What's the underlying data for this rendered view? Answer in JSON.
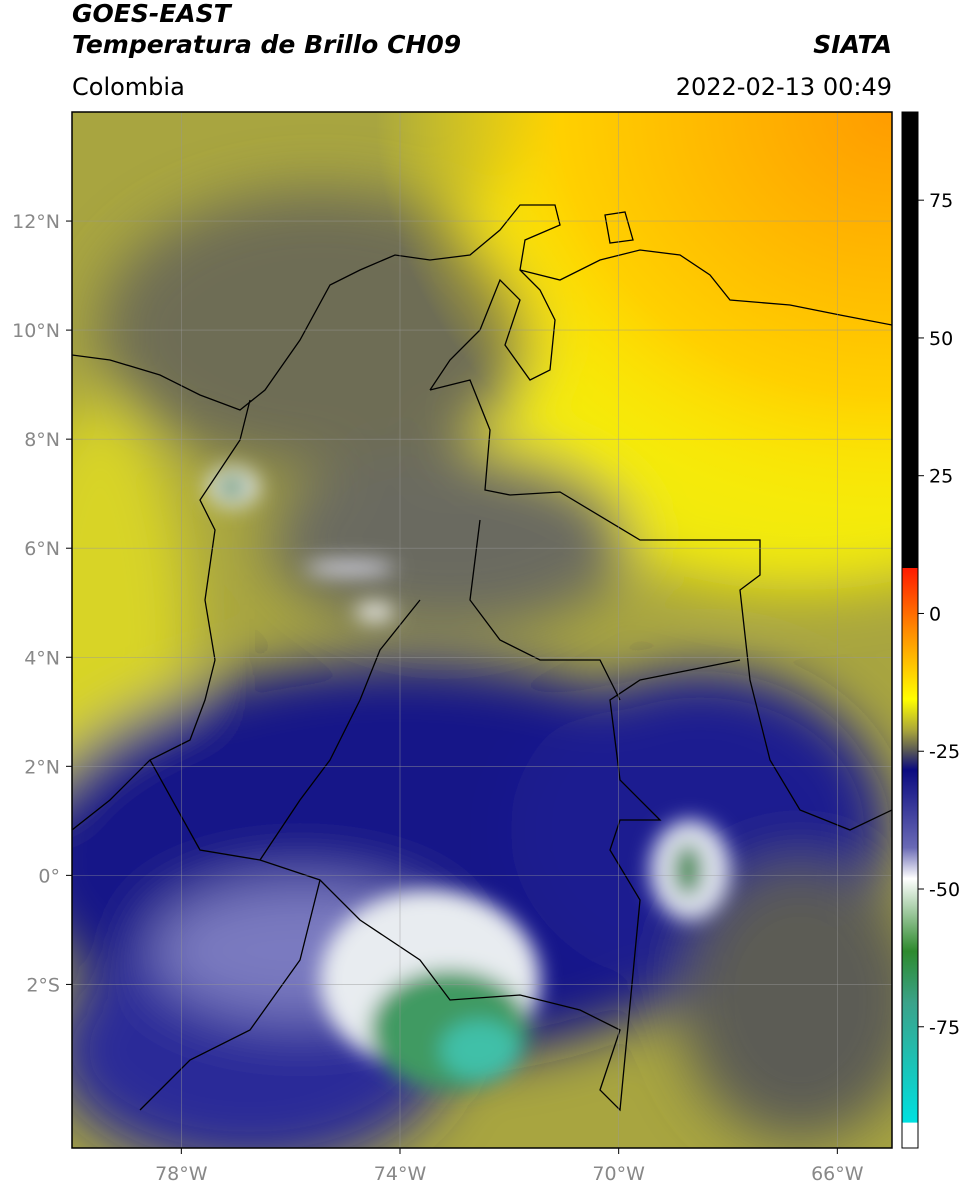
{
  "header": {
    "title": "GOES-EAST",
    "subtitle": "Temperatura de Brillo CH09",
    "source": "SIATA",
    "region": "Colombia",
    "timestamp": "2022-02-13 00:49"
  },
  "map": {
    "xlim": [
      -80,
      -65
    ],
    "ylim": [
      -5,
      14
    ],
    "lon_ticks": [
      {
        "value": -78,
        "label": "78°W"
      },
      {
        "value": -74,
        "label": "74°W"
      },
      {
        "value": -70,
        "label": "70°W"
      },
      {
        "value": -66,
        "label": "66°W"
      }
    ],
    "lat_ticks": [
      {
        "value": 12,
        "label": "12°N"
      },
      {
        "value": 10,
        "label": "10°N"
      },
      {
        "value": 8,
        "label": "8°N"
      },
      {
        "value": 6,
        "label": "6°N"
      },
      {
        "value": 4,
        "label": "4°N"
      },
      {
        "value": 2,
        "label": "2°N"
      },
      {
        "value": 0,
        "label": "0°"
      },
      {
        "value": -2,
        "label": "2°S"
      }
    ]
  },
  "colorbar": {
    "lim": [
      -97,
      91
    ],
    "ticks": [
      75,
      50,
      25,
      0,
      -25,
      -50,
      -75
    ]
  }
}
